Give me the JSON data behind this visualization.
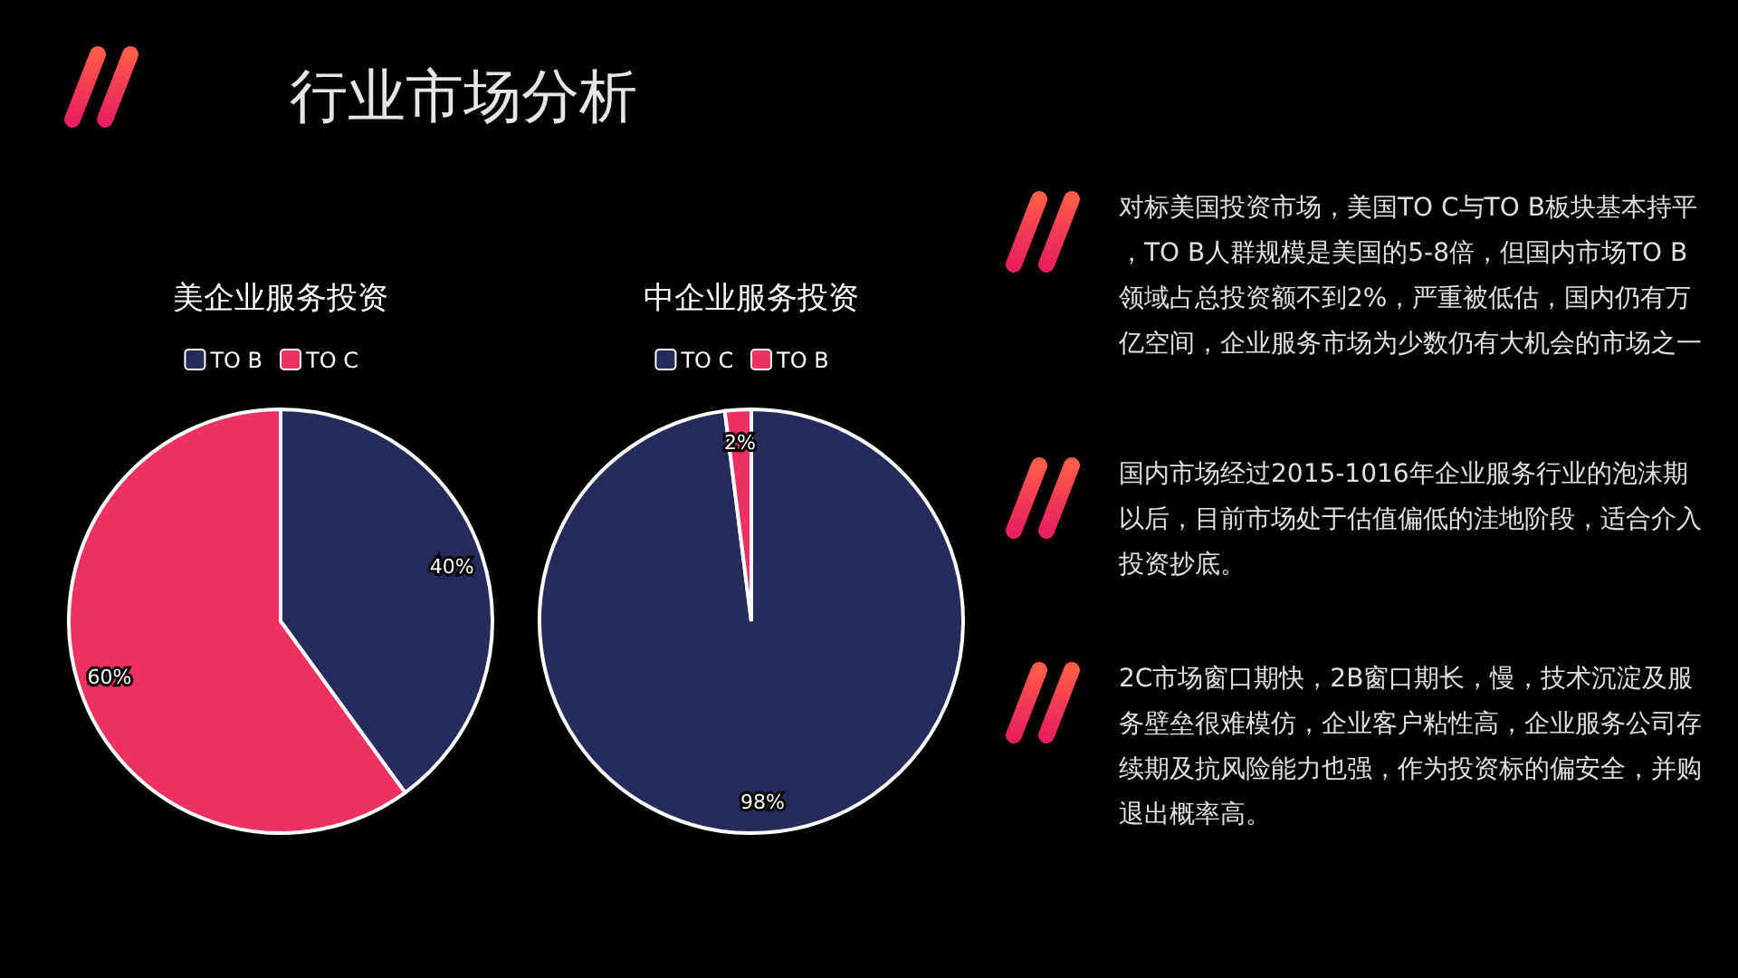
{
  "chart_data": [
    {
      "type": "pie",
      "title": "美企业服务投资",
      "categories": [
        "TO B",
        "TO C"
      ],
      "values": [
        40,
        60
      ],
      "colors": [
        "#262b5c",
        "#ee3162"
      ],
      "value_labels": [
        "40%",
        "60%"
      ],
      "legend": "top"
    },
    {
      "type": "pie",
      "title": "中企业服务投资",
      "categories": [
        "TO C",
        "TO B"
      ],
      "values": [
        98,
        2
      ],
      "colors": [
        "#262b5c",
        "#ee3162"
      ],
      "value_labels": [
        "98%",
        "2%"
      ],
      "legend": "top"
    },
    {
      "type": "other",
      "title": "行业市场分析",
      "annotations": [
        "对标美国投资市场，美国TO C与TO B板块基本持平，TO B人群规模是美国的5-8倍，但国内市场TO B领域占总投资额不到2%，严重被低估，国内仍有万亿空间，企业服务市场为少数仍有大机会的市场之一",
        "国内市场经过2015-1016年企业服务行业的泡沫期以后，目前市场处于估值偏低的洼地阶段，适合介入投资抄底。",
        "2C市场窗口期快，2B窗口期长，慢，技术沉淀及服务壁垒很难模仿，企业客户粘性高，企业服务公司存续期及抗风险能力也强，作为投资标的偏安全，并购退出概率高。"
      ]
    }
  ]
}
